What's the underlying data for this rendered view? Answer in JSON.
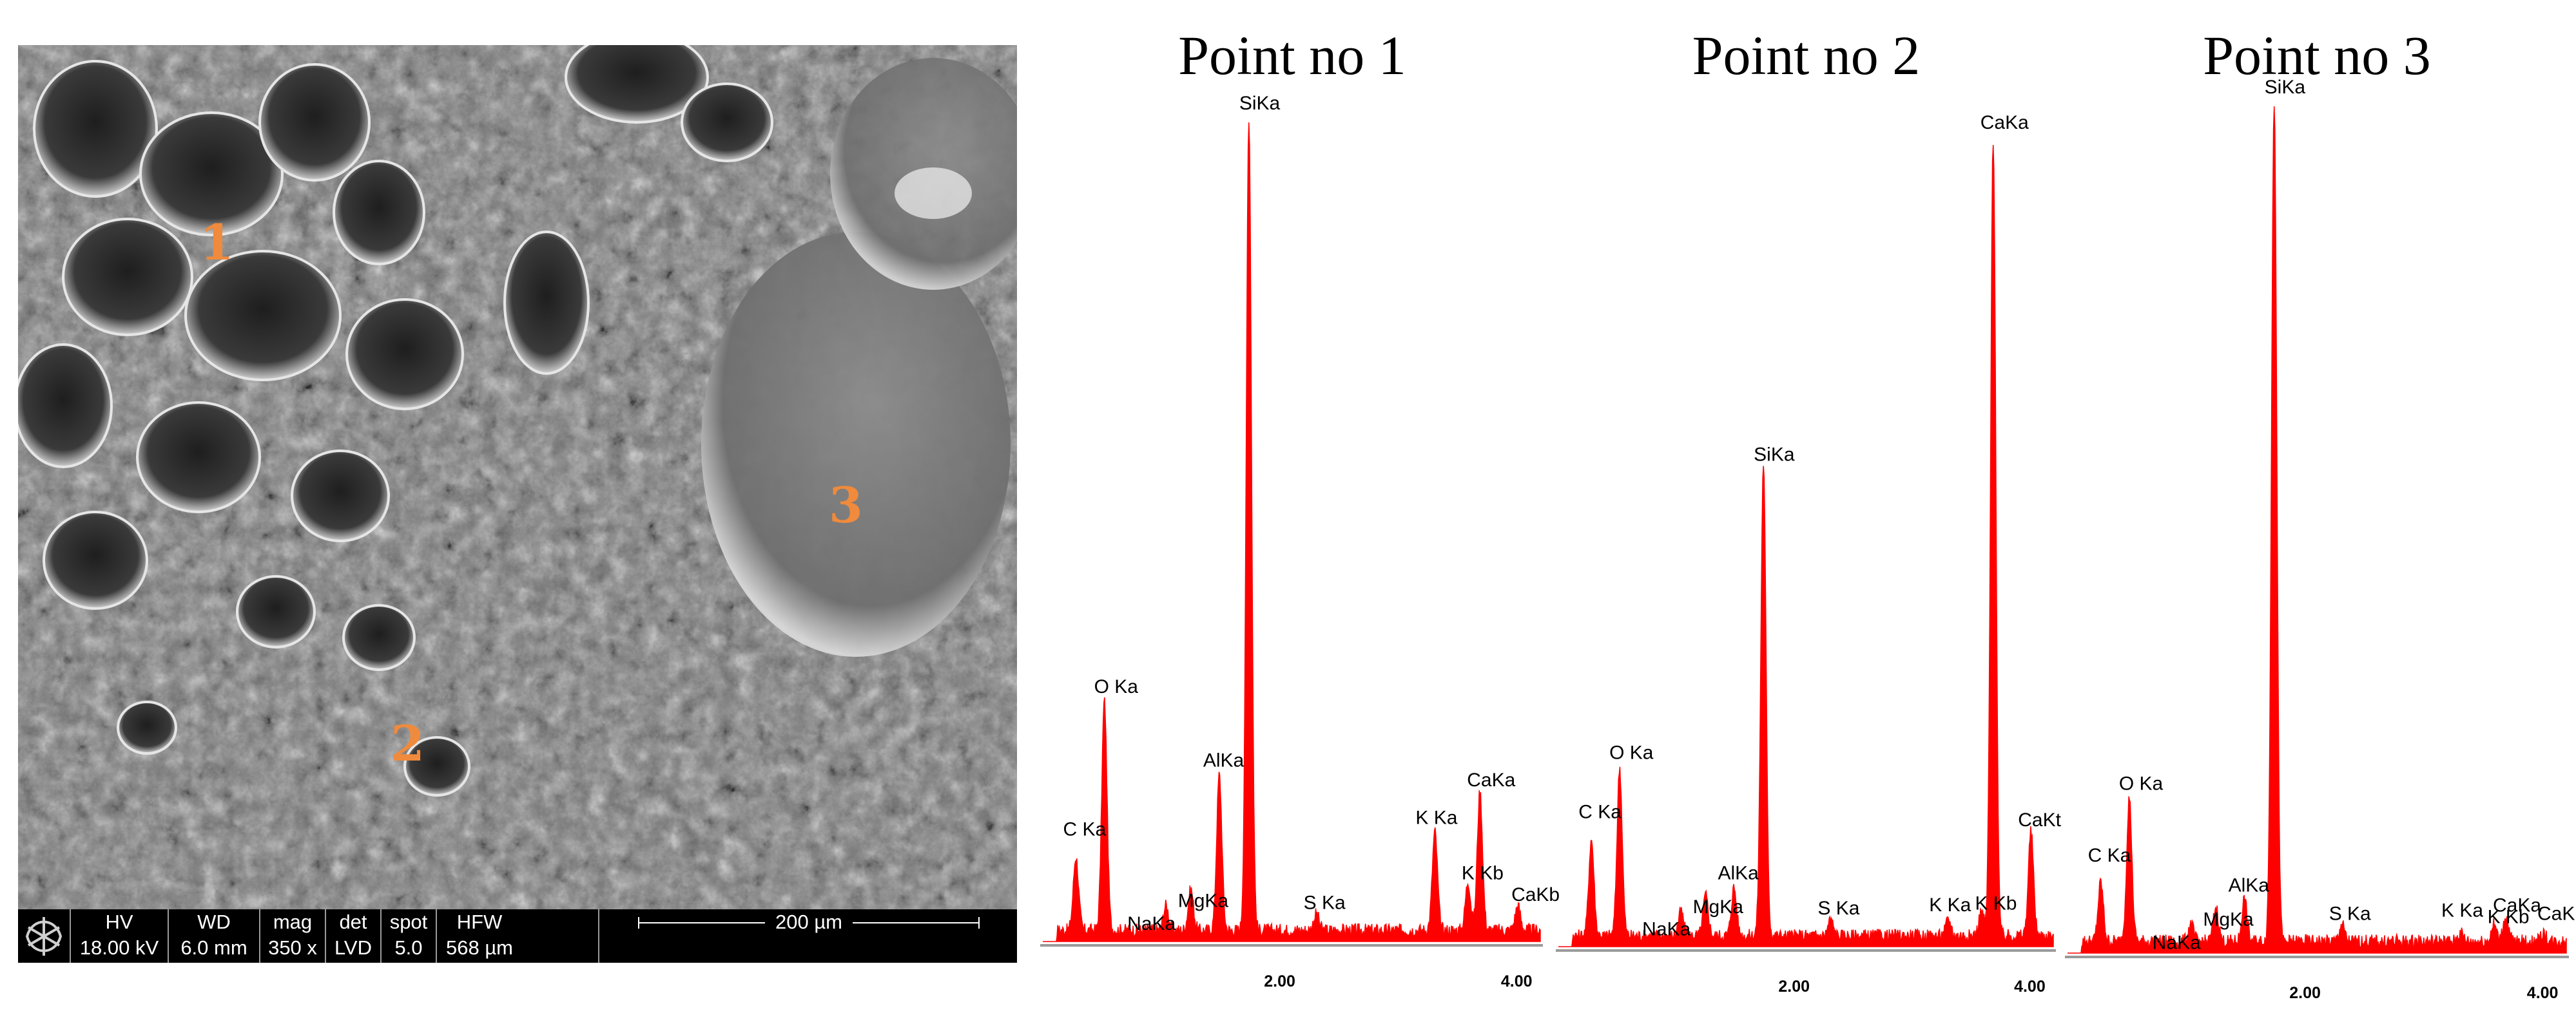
{
  "sem": {
    "points": [
      "1",
      "2",
      "3"
    ],
    "databar": {
      "columns": [
        {
          "header": "HV",
          "value": "18.00 kV"
        },
        {
          "header": "WD",
          "value": "6.0 mm"
        },
        {
          "header": "mag",
          "value": "350 x"
        },
        {
          "header": "det",
          "value": "LVD"
        },
        {
          "header": "spot",
          "value": "5.0"
        },
        {
          "header": "HFW",
          "value": "568 µm"
        }
      ],
      "scale_label": "200 µm"
    }
  },
  "colors": {
    "spectrum": "#ff0000",
    "point_marker": "#f08a3c"
  },
  "chart_data": [
    {
      "type": "area",
      "title": "Point no 1",
      "xlabel": "",
      "ylabel": "",
      "xlim": [
        0.0,
        4.2
      ],
      "ylim": [
        0,
        100
      ],
      "x_ticks": [
        "2.00",
        "4.00"
      ],
      "x_tick_values": [
        2.0,
        4.0
      ],
      "peaks": [
        {
          "label": "C Ka",
          "x": 0.28,
          "y": 9
        },
        {
          "label": "O Ka",
          "x": 0.52,
          "y": 28
        },
        {
          "label": "NaKa",
          "x": 1.04,
          "y": 3
        },
        {
          "label": "MgKa",
          "x": 1.25,
          "y": 5
        },
        {
          "label": "AlKa",
          "x": 1.49,
          "y": 19
        },
        {
          "label": "SiKa",
          "x": 1.74,
          "y": 100
        },
        {
          "label": "S Ka",
          "x": 2.31,
          "y": 2
        },
        {
          "label": "K Ka",
          "x": 3.31,
          "y": 12
        },
        {
          "label": "K Kb",
          "x": 3.59,
          "y": 6
        },
        {
          "label": "CaKa",
          "x": 3.69,
          "y": 17
        },
        {
          "label": "CaKb",
          "x": 4.01,
          "y": 3
        }
      ]
    },
    {
      "type": "area",
      "title": "Point no 2",
      "xlabel": "",
      "ylabel": "",
      "xlim": [
        0.0,
        4.2
      ],
      "ylim": [
        0,
        100
      ],
      "x_ticks": [
        "2.00",
        "4.00"
      ],
      "x_tick_values": [
        2.0,
        4.0
      ],
      "peaks": [
        {
          "label": "C Ka",
          "x": 0.28,
          "y": 12
        },
        {
          "label": "O Ka",
          "x": 0.52,
          "y": 21
        },
        {
          "label": "NaKa",
          "x": 1.04,
          "y": 3
        },
        {
          "label": "MgKa",
          "x": 1.25,
          "y": 5
        },
        {
          "label": "AlKa",
          "x": 1.49,
          "y": 6
        },
        {
          "label": "SiKa",
          "x": 1.74,
          "y": 59
        },
        {
          "label": "S Ka",
          "x": 2.31,
          "y": 2
        },
        {
          "label": "K Ka",
          "x": 3.31,
          "y": 2
        },
        {
          "label": "K Kb",
          "x": 3.59,
          "y": 3
        },
        {
          "label": "CaKa",
          "x": 3.69,
          "y": 100
        },
        {
          "label": "CaKt",
          "x": 4.01,
          "y": 13
        }
      ]
    },
    {
      "type": "area",
      "title": "Point no 3",
      "xlabel": "",
      "ylabel": "",
      "xlim": [
        0.0,
        4.2
      ],
      "ylim": [
        0,
        100
      ],
      "x_ticks": [
        "2.00",
        "4.00"
      ],
      "x_tick_values": [
        2.0,
        4.0
      ],
      "peaks": [
        {
          "label": "C Ka",
          "x": 0.28,
          "y": 7
        },
        {
          "label": "O Ka",
          "x": 0.52,
          "y": 17
        },
        {
          "label": "NaKa",
          "x": 1.04,
          "y": 2
        },
        {
          "label": "MgKa",
          "x": 1.25,
          "y": 4
        },
        {
          "label": "AlKa",
          "x": 1.49,
          "y": 5
        },
        {
          "label": "SiKa",
          "x": 1.74,
          "y": 100
        },
        {
          "label": "S Ka",
          "x": 2.31,
          "y": 2
        },
        {
          "label": "K Ka",
          "x": 3.31,
          "y": 1
        },
        {
          "label": "K Kb",
          "x": 3.59,
          "y": 2
        },
        {
          "label": "CaKa",
          "x": 3.69,
          "y": 3
        },
        {
          "label": "CaKb",
          "x": 4.01,
          "y": 1
        }
      ]
    }
  ]
}
